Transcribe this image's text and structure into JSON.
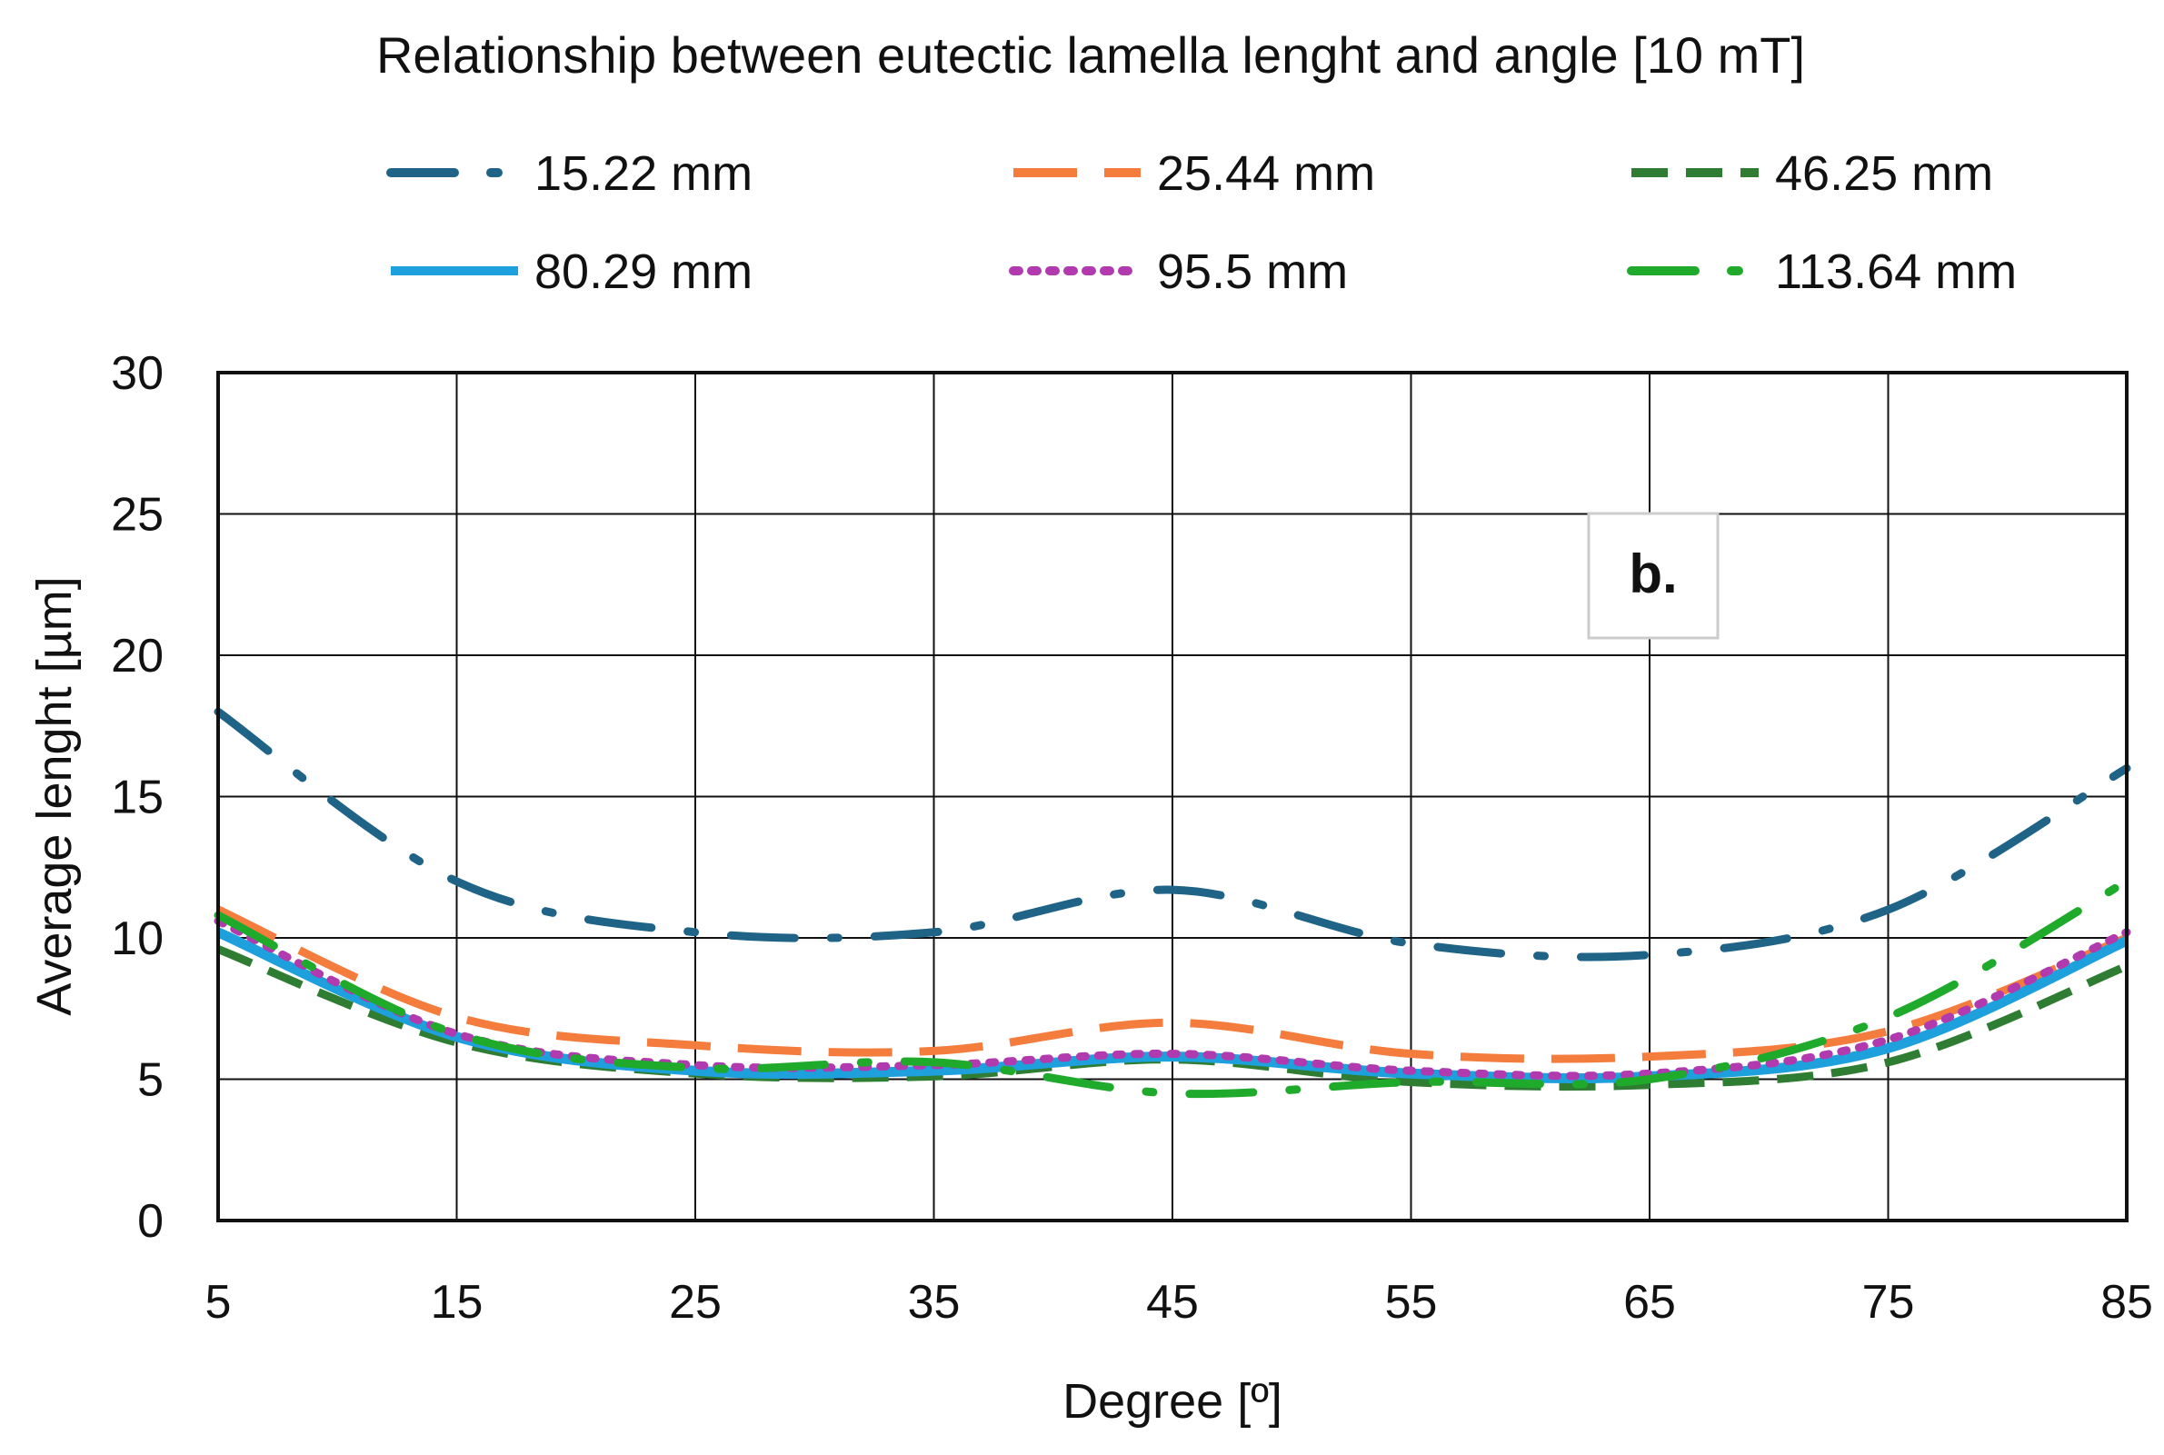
{
  "chart_data": {
    "type": "line",
    "title": "Relationship between eutectic lamella lenght and angle [10 mT]",
    "xlabel": "Degree [º]",
    "ylabel": "Average lenght [µm]",
    "xlim": [
      5,
      85
    ],
    "ylim": [
      0,
      30
    ],
    "xticks": [
      "5",
      "15",
      "25",
      "35",
      "45",
      "55",
      "65",
      "75",
      "85"
    ],
    "yticks": [
      "0",
      "5",
      "10",
      "15",
      "20",
      "25",
      "30"
    ],
    "grid": true,
    "legend_position": "top",
    "annotation": "b.",
    "series": [
      {
        "name": "15.22 mm",
        "color": "#1F6387",
        "style": "dash-dot",
        "x": [
          5,
          15,
          25,
          35,
          45,
          55,
          65,
          75,
          85
        ],
        "y": [
          18,
          12,
          10.2,
          10.2,
          11.7,
          9.8,
          9.4,
          11,
          16
        ]
      },
      {
        "name": "25.44 mm",
        "color": "#F47C3C",
        "style": "long-dash",
        "x": [
          5,
          15,
          25,
          35,
          45,
          55,
          65,
          75,
          85
        ],
        "y": [
          11,
          7.2,
          6.2,
          6.0,
          7.0,
          5.9,
          5.8,
          6.7,
          10
        ]
      },
      {
        "name": "46.25 mm",
        "color": "#2E7D32",
        "style": "dash",
        "x": [
          5,
          15,
          25,
          35,
          45,
          55,
          65,
          75,
          85
        ],
        "y": [
          9.6,
          6.3,
          5.2,
          5.1,
          5.7,
          4.9,
          4.8,
          5.6,
          9
        ]
      },
      {
        "name": "80.29 mm",
        "color": "#1EA0DC",
        "style": "solid",
        "x": [
          5,
          15,
          25,
          35,
          45,
          55,
          65,
          75,
          85
        ],
        "y": [
          10.2,
          6.5,
          5.3,
          5.3,
          5.8,
          5.2,
          5.1,
          6.1,
          9.9
        ]
      },
      {
        "name": "95.5 mm",
        "color": "#B13AAE",
        "style": "dotted",
        "x": [
          5,
          15,
          25,
          35,
          45,
          55,
          65,
          75,
          85
        ],
        "y": [
          10.6,
          6.6,
          5.5,
          5.5,
          5.9,
          5.3,
          5.2,
          6.4,
          10.2
        ]
      },
      {
        "name": "113.64 mm",
        "color": "#1FAA2C",
        "style": "dash-dot",
        "x": [
          5,
          15,
          25,
          35,
          45,
          55,
          65,
          75,
          85
        ],
        "y": [
          10.8,
          6.6,
          5.4,
          5.6,
          4.5,
          4.9,
          5.0,
          7.2,
          12
        ]
      }
    ]
  }
}
